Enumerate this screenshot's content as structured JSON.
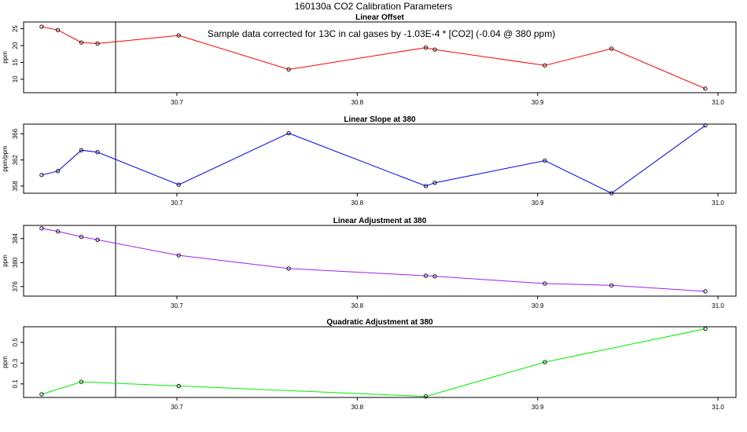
{
  "figure_title": "160130a   CO2 Calibration Parameters",
  "annotation": "Sample data corrected for 13C in cal gases by -1.03E-4 * [CO2] (-0.04 @ 380 ppm)",
  "chart_data": [
    {
      "type": "line",
      "title": "Linear Offset",
      "ylabel": "ppm",
      "xlabel": "",
      "color": "#ff0000",
      "xlim": [
        30.615,
        31.01
      ],
      "ylim": [
        6,
        27
      ],
      "xticks": [
        "30.7",
        "30.8",
        "30.9",
        "31.0"
      ],
      "yticks": [
        "10",
        "15",
        "20",
        "25"
      ],
      "vline_x": 30.666,
      "x": [
        30.625,
        30.634,
        30.647,
        30.656,
        30.701,
        30.762,
        30.838,
        30.843,
        30.904,
        30.941,
        30.993
      ],
      "y": [
        25.6,
        24.6,
        20.9,
        20.6,
        23.0,
        12.9,
        19.4,
        18.8,
        14.1,
        19.1,
        7.2
      ]
    },
    {
      "type": "line",
      "title": "Linear Slope at 380",
      "ylabel": "ppm/ppm",
      "xlabel": "",
      "color": "#0000ff",
      "xlim": [
        30.615,
        31.01
      ],
      "ylim": [
        356.9,
        367.5
      ],
      "xticks": [
        "30.7",
        "30.8",
        "30.9",
        "31.0"
      ],
      "yticks": [
        "358",
        "362",
        "366"
      ],
      "vline_x": 30.666,
      "x": [
        30.625,
        30.634,
        30.647,
        30.656,
        30.701,
        30.762,
        30.838,
        30.843,
        30.904,
        30.941,
        30.993
      ],
      "y": [
        359.7,
        360.3,
        363.5,
        363.2,
        358.2,
        366.1,
        358.0,
        358.5,
        361.9,
        356.9,
        367.3
      ]
    },
    {
      "type": "line",
      "title": "Linear Adjustment at 380",
      "ylabel": "ppm",
      "xlabel": "",
      "color": "#a020f0",
      "xlim": [
        30.615,
        31.01
      ],
      "ylim": [
        374.4,
        386.2
      ],
      "xticks": [
        "30.7",
        "30.8",
        "30.9",
        "31.0"
      ],
      "yticks": [
        "376",
        "380",
        "384"
      ],
      "vline_x": 30.666,
      "x": [
        30.625,
        30.634,
        30.647,
        30.656,
        30.701,
        30.762,
        30.838,
        30.843,
        30.904,
        30.941,
        30.993
      ],
      "y": [
        385.7,
        385.2,
        384.3,
        383.8,
        381.2,
        379.0,
        377.8,
        377.7,
        376.5,
        376.2,
        375.2
      ]
    },
    {
      "type": "line",
      "title": "Quadratic Adjustment at 380",
      "ylabel": "ppm",
      "xlabel": "",
      "color": "#00ee00",
      "xlim": [
        30.615,
        31.01
      ],
      "ylim": [
        -0.03,
        0.65
      ],
      "xticks": [
        "30.7",
        "30.8",
        "30.9",
        "31.0"
      ],
      "yticks": [
        "0.1",
        "0.3",
        "0.5"
      ],
      "vline_x": 30.666,
      "x": [
        30.625,
        30.647,
        30.701,
        30.838,
        30.904,
        30.993
      ],
      "y": [
        0.0,
        0.12,
        0.08,
        -0.02,
        0.31,
        0.63
      ]
    }
  ]
}
